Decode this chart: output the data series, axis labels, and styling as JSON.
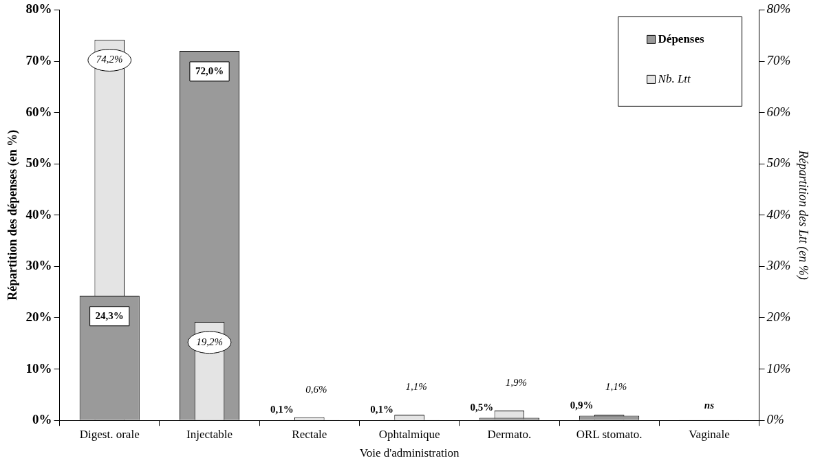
{
  "chart_data": {
    "type": "bar",
    "xlabel": "Voie d'administration",
    "ylabel": "Répartition des dépenses (en %)",
    "y2label": "Répartition des Ltt (en %)",
    "categories": [
      "Digest. orale",
      "Injectable",
      "Rectale",
      "Ophtalmique",
      "Dermato.",
      "ORL stomato.",
      "Vaginale"
    ],
    "series": [
      {
        "name": "Dépenses",
        "color": "#9a9a9a",
        "values": [
          24.3,
          72.0,
          0.1,
          0.1,
          0.5,
          0.9,
          0.1
        ],
        "value_labels": [
          "24,3%",
          "72,0%",
          "0,1%",
          "0,1%",
          "0,5%",
          "0,9%",
          "ns"
        ]
      },
      {
        "name": "Nb. Ltt",
        "color": "#e4e4e4",
        "axis": "y2",
        "values": [
          74.2,
          19.2,
          0.6,
          1.1,
          1.9,
          1.1,
          null
        ],
        "value_labels": [
          "74,2%",
          "19,2%",
          "0,6%",
          "1,1%",
          "1,9%",
          "1,1%",
          null
        ]
      }
    ],
    "ylim": [
      0,
      80
    ],
    "yticks": [
      {
        "value": 0,
        "label": "0%"
      },
      {
        "value": 10,
        "label": "10%"
      },
      {
        "value": 20,
        "label": "20%"
      },
      {
        "value": 30,
        "label": "30%"
      },
      {
        "value": 40,
        "label": "40%"
      },
      {
        "value": 50,
        "label": "50%"
      },
      {
        "value": 60,
        "label": "60%"
      },
      {
        "value": 70,
        "label": "70%"
      },
      {
        "value": 80,
        "label": "80%"
      }
    ],
    "y2lim": [
      0,
      80
    ],
    "y2ticks": [
      {
        "value": 0,
        "label": "0%"
      },
      {
        "value": 10,
        "label": "10%"
      },
      {
        "value": 20,
        "label": "20%"
      },
      {
        "value": 30,
        "label": "30%"
      },
      {
        "value": 40,
        "label": "40%"
      },
      {
        "value": 50,
        "label": "50%"
      },
      {
        "value": 60,
        "label": "60%"
      },
      {
        "value": 70,
        "label": "70%"
      },
      {
        "value": 80,
        "label": "80%"
      }
    ],
    "grid": false,
    "legend": "top right"
  }
}
